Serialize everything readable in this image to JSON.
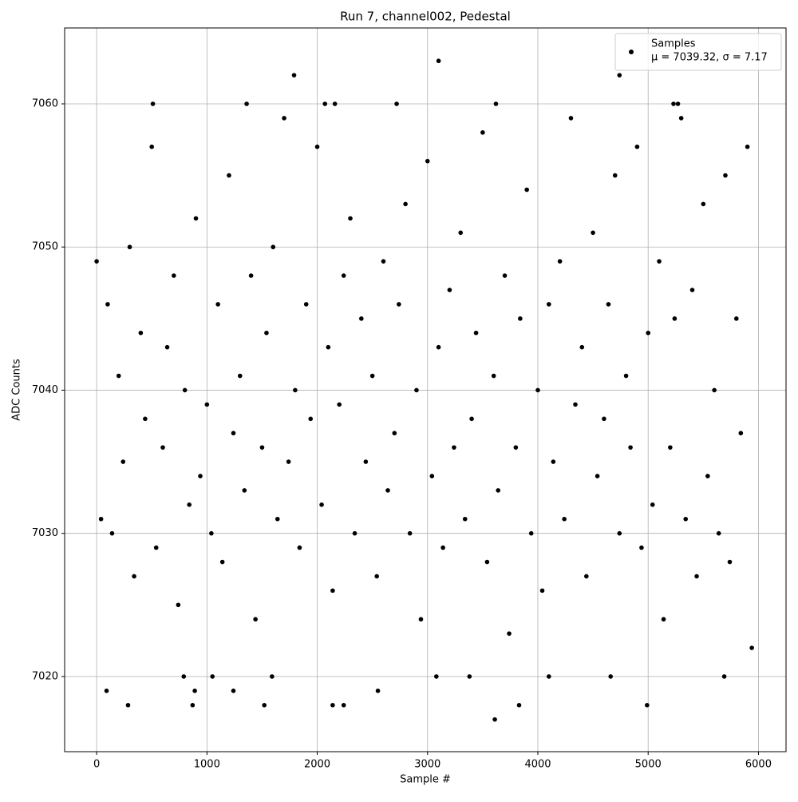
{
  "chart_data": {
    "type": "scatter",
    "title": "Run 7, channel002, Pedestal",
    "x_label": "Sample #",
    "y_label": "ADC Counts",
    "xlim": [
      -290,
      6250
    ],
    "ylim": [
      7014.75,
      7065.3
    ],
    "xticks": [
      0,
      1000,
      2000,
      3000,
      4000,
      5000,
      6000
    ],
    "yticks": [
      7020,
      7030,
      7040,
      7050,
      7060
    ],
    "grid": true,
    "legend": "upper right",
    "series": [
      {
        "name": "Samples",
        "label": "μ = 7039.32, σ = 7.17",
        "color": "#000000",
        "x": [
          1790,
          3100,
          4740,
          3610,
          3830,
          4990,
          285,
          870,
          1520,
          2140,
          2240,
          90,
          890,
          1240,
          2550,
          790,
          1050,
          1590,
          3080,
          3380,
          4100,
          4660,
          5690,
          510,
          1360,
          2070,
          2160,
          2720,
          3620,
          5230,
          5270,
          0,
          40,
          100,
          140,
          200,
          240,
          300,
          340,
          400,
          440,
          500,
          540,
          600,
          640,
          700,
          740,
          800,
          840,
          900,
          940,
          1000,
          1040,
          1100,
          1140,
          1200,
          1240,
          1300,
          1340,
          1400,
          1440,
          1500,
          1540,
          1600,
          1640,
          1700,
          1740,
          1800,
          1840,
          1900,
          1940,
          2000,
          2040,
          2100,
          2140,
          2200,
          2240,
          2300,
          2340,
          2400,
          2440,
          2500,
          2540,
          2600,
          2640,
          2700,
          2740,
          2800,
          2840,
          2900,
          2940,
          3000,
          3040,
          3100,
          3140,
          3200,
          3240,
          3300,
          3340,
          3400,
          3440,
          3500,
          3540,
          3600,
          3640,
          3700,
          3740,
          3800,
          3840,
          3900,
          3940,
          4000,
          4040,
          4100,
          4140,
          4200,
          4240,
          4300,
          4340,
          4400,
          4440,
          4500,
          4540,
          4600,
          4640,
          4700,
          4740,
          4800,
          4840,
          4900,
          4940,
          5000,
          5040,
          5100,
          5140,
          5200,
          5240,
          5300,
          5340,
          5400,
          5440,
          5500,
          5540,
          5600,
          5640,
          5700,
          5740,
          5800,
          5840,
          5900,
          5940
        ],
        "values": [
          7062,
          7063,
          7062,
          7017,
          7018,
          7018,
          7018,
          7018,
          7018,
          7018,
          7018,
          7019,
          7019,
          7019,
          7019,
          7020,
          7020,
          7020,
          7020,
          7020,
          7020,
          7020,
          7020,
          7060,
          7060,
          7060,
          7060,
          7060,
          7060,
          7060,
          7060,
          7049,
          7031,
          7046,
          7030,
          7041,
          7035,
          7050,
          7027,
          7044,
          7038,
          7057,
          7029,
          7036,
          7043,
          7048,
          7025,
          7040,
          7032,
          7052,
          7034,
          7039,
          7030,
          7046,
          7028,
          7055,
          7037,
          7041,
          7033,
          7048,
          7024,
          7036,
          7044,
          7050,
          7031,
          7059,
          7035,
          7040,
          7029,
          7046,
          7038,
          7057,
          7032,
          7043,
          7026,
          7039,
          7048,
          7052,
          7030,
          7045,
          7035,
          7041,
          7027,
          7049,
          7033,
          7037,
          7046,
          7053,
          7030,
          7040,
          7024,
          7056,
          7034,
          7043,
          7029,
          7047,
          7036,
          7051,
          7031,
          7038,
          7044,
          7058,
          7028,
          7041,
          7033,
          7048,
          7023,
          7036,
          7045,
          7054,
          7030,
          7040,
          7026,
          7046,
          7035,
          7049,
          7031,
          7059,
          7039,
          7043,
          7027,
          7051,
          7034,
          7038,
          7046,
          7055,
          7030,
          7041,
          7036,
          7057,
          7029,
          7044,
          7032,
          7049,
          7024,
          7036,
          7045,
          7059,
          7031,
          7047,
          7027,
          7053,
          7034,
          7040,
          7030,
          7055,
          7028,
          7045,
          7037,
          7057,
          7022
        ]
      }
    ]
  }
}
